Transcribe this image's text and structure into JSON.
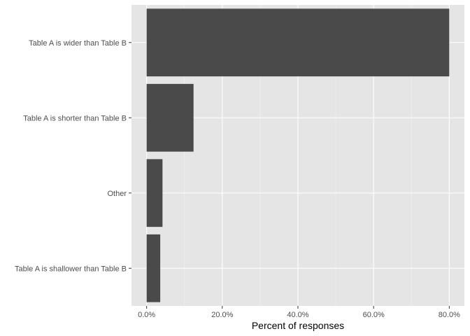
{
  "chart_data": {
    "type": "bar",
    "orientation": "horizontal",
    "categories": [
      "Table A is wider than Table B",
      "Table A is shorter than Table B",
      "Other",
      "Table A is shallower than Table B"
    ],
    "values": [
      0.8,
      0.124,
      0.042,
      0.036
    ],
    "x_tick_labels": [
      "0.0%",
      "20.0%",
      "40.0%",
      "60.0%",
      "80.0%"
    ],
    "x_ticks": [
      0,
      0.2,
      0.4,
      0.6,
      0.8
    ],
    "xlabel": "Percent of responses",
    "ylabel": "",
    "xlim": [
      -0.04,
      0.84
    ],
    "grid": true,
    "colors": {
      "panel": "#e5e5e5",
      "grid_major": "#ffffff",
      "grid_minor": "#f0f0f0",
      "bar": "#4a4a4a",
      "tick": "#333333"
    }
  }
}
